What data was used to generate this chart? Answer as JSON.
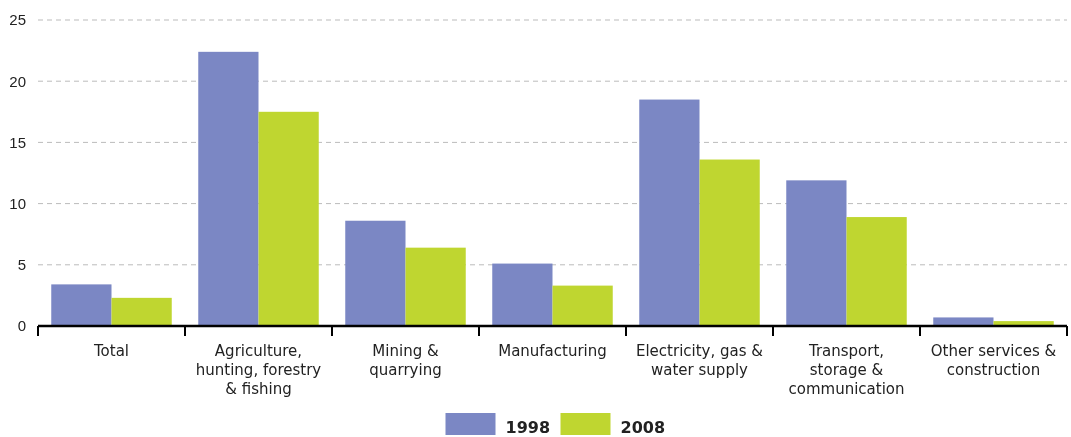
{
  "chart_data": {
    "type": "bar",
    "categories": [
      "Total",
      "Agriculture, hunting, forestry & fishing",
      "Mining & quarrying",
      "Manufacturing",
      "Electricity, gas & water supply",
      "Transport, storage & communication",
      "Other services & construction"
    ],
    "series": [
      {
        "name": "1998",
        "color": "#7b87c4",
        "values": [
          3.4,
          22.4,
          8.6,
          5.1,
          18.5,
          11.9,
          0.7
        ]
      },
      {
        "name": "2008",
        "color": "#bfd630",
        "values": [
          2.3,
          17.5,
          6.4,
          3.3,
          13.6,
          8.9,
          0.4
        ]
      }
    ],
    "ylim": [
      0,
      25
    ],
    "yticks": [
      0,
      5,
      10,
      15,
      20,
      25
    ],
    "grid": "y",
    "legend": "bottom"
  }
}
